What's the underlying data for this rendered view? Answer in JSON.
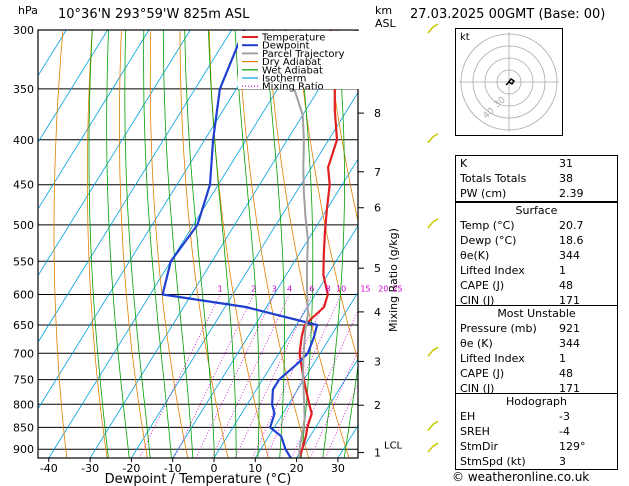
{
  "header": {
    "location": "10°36'N  293°59'W  825m  ASL",
    "datetime": "27.03.2025  00GMT  (Base: 00)",
    "hpa_label": "hPa",
    "km_label": "km",
    "asl_label": "ASL"
  },
  "colors": {
    "temperature": "#e02020",
    "dewpoint": "#1f3fd0",
    "parcel": "#a0a0a0",
    "dry_adiabat": "#e08000",
    "wet_adiabat": "#00a000",
    "isotherm": "#00a0e0",
    "mixing_ratio": "#d000d0",
    "wind_barb": "#c8c800"
  },
  "legend": [
    "Temperature",
    "Dewpoint",
    "Parcel Trajectory",
    "Dry Adiabat",
    "Wet Adiabat",
    "Isotherm",
    "Mixing Ratio"
  ],
  "chart_data": {
    "type": "line",
    "xlabel": "Dewpoint / Temperature (°C)",
    "ylabel_right": "Mixing Ratio (g/kg)",
    "x_ticks": [
      "-40",
      "-30",
      "-20",
      "-10",
      "0",
      "10",
      "20",
      "30"
    ],
    "pressure_levels": [
      300,
      350,
      400,
      450,
      500,
      550,
      600,
      650,
      700,
      750,
      800,
      850,
      900
    ],
    "km_ticks": [
      {
        "label": "8",
        "p": 373
      },
      {
        "label": "7",
        "p": 435
      },
      {
        "label": "6",
        "p": 478
      },
      {
        "label": "5",
        "p": 560
      },
      {
        "label": "4",
        "p": 628
      },
      {
        "label": "3",
        "p": 715
      },
      {
        "label": "2",
        "p": 802
      },
      {
        "label": "1",
        "p": 908
      },
      {
        "label": "LCL",
        "p": 903
      }
    ],
    "mixing_ratio_labels": [
      "1",
      "2",
      "3",
      "4",
      "6",
      "8",
      "10",
      "15",
      "20",
      "25"
    ],
    "series": [
      {
        "name": "Temperature",
        "points": [
          [
            20.7,
            921
          ],
          [
            20,
            900
          ],
          [
            19,
            870
          ],
          [
            18,
            850
          ],
          [
            17,
            820
          ],
          [
            15,
            800
          ],
          [
            12,
            770
          ],
          [
            9,
            740
          ],
          [
            7,
            720
          ],
          [
            5,
            700
          ],
          [
            3,
            670
          ],
          [
            2,
            650
          ],
          [
            4,
            620
          ],
          [
            3,
            600
          ],
          [
            -1,
            570
          ],
          [
            -4,
            540
          ],
          [
            -7,
            510
          ],
          [
            -10,
            480
          ],
          [
            -13,
            450
          ],
          [
            -16,
            430
          ],
          [
            -18,
            400
          ],
          [
            -23,
            370
          ],
          [
            -27,
            345
          ],
          [
            -31,
            320
          ],
          [
            -36,
            300
          ]
        ]
      },
      {
        "name": "Dewpoint",
        "points": [
          [
            18.6,
            921
          ],
          [
            16,
            900
          ],
          [
            13,
            870
          ],
          [
            9,
            850
          ],
          [
            8,
            820
          ],
          [
            6,
            800
          ],
          [
            4,
            770
          ],
          [
            4,
            750
          ],
          [
            6,
            720
          ],
          [
            7,
            700
          ],
          [
            6,
            670
          ],
          [
            5,
            650
          ],
          [
            -15,
            620
          ],
          [
            -37,
            600
          ],
          [
            -40,
            550
          ],
          [
            -39,
            500
          ],
          [
            -42,
            450
          ],
          [
            -48,
            400
          ],
          [
            -54,
            350
          ],
          [
            -57,
            300
          ]
        ]
      },
      {
        "name": "Parcel Trajectory",
        "points": [
          [
            20.7,
            921
          ],
          [
            19.5,
            903
          ],
          [
            18,
            870
          ],
          [
            16,
            830
          ],
          [
            13,
            790
          ],
          [
            9,
            740
          ],
          [
            6,
            700
          ],
          [
            3,
            660
          ],
          [
            1,
            630
          ],
          [
            -2,
            600
          ],
          [
            -6,
            560
          ],
          [
            -10,
            520
          ],
          [
            -14,
            490
          ],
          [
            -18,
            460
          ],
          [
            -22,
            430
          ],
          [
            -26,
            400
          ],
          [
            -30,
            375
          ],
          [
            -36,
            350
          ],
          [
            -42,
            325
          ],
          [
            -47,
            300
          ]
        ]
      }
    ]
  },
  "hodograph": {
    "label": "kt",
    "ring_labels": [
      "30",
      "40"
    ]
  },
  "indices": {
    "rows": [
      {
        "label": "K",
        "value": "31"
      },
      {
        "label": "Totals Totals",
        "value": "38"
      },
      {
        "label": "PW (cm)",
        "value": "2.39"
      }
    ]
  },
  "surface": {
    "title": "Surface",
    "rows": [
      {
        "label": "Temp (°C)",
        "value": "20.7"
      },
      {
        "label": "Dewp (°C)",
        "value": "18.6"
      },
      {
        "label": "θe(K)",
        "value": "344"
      },
      {
        "label": "Lifted Index",
        "value": "1"
      },
      {
        "label": "CAPE (J)",
        "value": "48"
      },
      {
        "label": "CIN (J)",
        "value": "171"
      }
    ]
  },
  "most_unstable": {
    "title": "Most Unstable",
    "rows": [
      {
        "label": "Pressure (mb)",
        "value": "921"
      },
      {
        "label": "θe (K)",
        "value": "344"
      },
      {
        "label": "Lifted Index",
        "value": "1"
      },
      {
        "label": "CAPE (J)",
        "value": "48"
      },
      {
        "label": "CIN (J)",
        "value": "171"
      }
    ]
  },
  "hodograph_table": {
    "title": "Hodograph",
    "rows": [
      {
        "label": "EH",
        "value": "-3"
      },
      {
        "label": "SREH",
        "value": "-4"
      },
      {
        "label": "StmDir",
        "value": "129°"
      },
      {
        "label": "StmSpd (kt)",
        "value": "3"
      }
    ]
  },
  "credit": "© weatheronline.co.uk"
}
